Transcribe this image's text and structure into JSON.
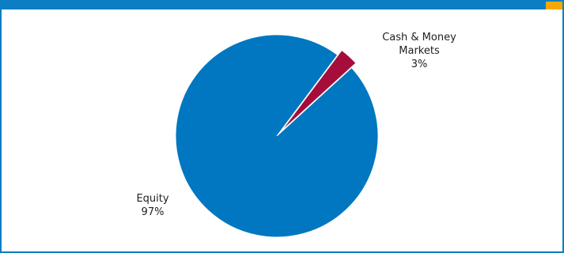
{
  "chart_data": {
    "type": "pie",
    "categories": [
      "Cash & Money Markets",
      "Equity"
    ],
    "values": [
      3,
      97
    ],
    "value_labels": [
      "3%",
      "97%"
    ],
    "colors": [
      "#a50d3a",
      "#0077c0"
    ]
  }
}
